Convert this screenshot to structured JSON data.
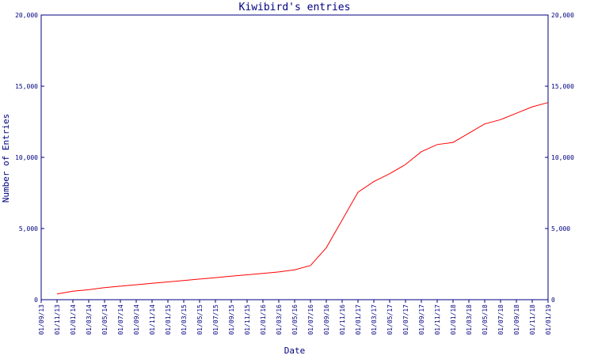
{
  "chart_data": {
    "type": "line",
    "title": "Kiwibird's entries",
    "x_label": "Date",
    "y_label": "Number of Entries",
    "categories": [
      "01/09/13",
      "01/11/13",
      "01/01/14",
      "01/03/14",
      "01/05/14",
      "01/07/14",
      "01/09/14",
      "01/11/14",
      "01/01/15",
      "01/03/15",
      "01/05/15",
      "01/07/15",
      "01/09/15",
      "01/11/15",
      "01/01/16",
      "01/03/16",
      "01/05/16",
      "01/07/16",
      "01/09/16",
      "01/11/16",
      "01/01/17",
      "01/03/17",
      "01/05/17",
      "01/07/17",
      "01/09/17",
      "01/11/17",
      "01/01/18",
      "01/03/18",
      "01/05/18",
      "01/07/18",
      "01/09/18",
      "01/11/18",
      "01/01/19"
    ],
    "series": [
      {
        "name": "Entries",
        "color": "#ff0000",
        "values": [
          null,
          400,
          600,
          700,
          850,
          950,
          1050,
          1150,
          1250,
          1350,
          1450,
          1550,
          1650,
          1750,
          1850,
          1950,
          2100,
          2400,
          3650,
          5600,
          7550,
          8300,
          8850,
          9500,
          10400,
          10900,
          11050,
          11700,
          12350,
          12650,
          13100,
          13550,
          13850
        ]
      }
    ],
    "ylim": [
      0,
      20000
    ],
    "yticks": [
      0,
      {
        "value": 5000,
        "label": "5,000"
      },
      {
        "value": 10000,
        "label": "10,000"
      },
      {
        "value": 15000,
        "label": "15,000"
      },
      {
        "value": 20000,
        "label": "20,000"
      }
    ],
    "axis_color": "#000080"
  }
}
